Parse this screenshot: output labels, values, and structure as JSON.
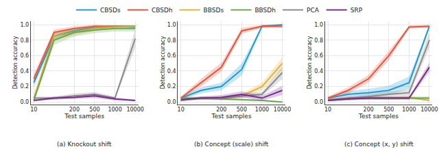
{
  "chart_data": [
    {
      "type": "line",
      "title": "(a) Knockout shift",
      "x_label": "Test samples",
      "y_label": "Detection accuracy",
      "categories": [
        "10",
        null,
        "200",
        "500",
        "1000",
        "10000"
      ],
      "ylim": [
        -0.03,
        1.05
      ],
      "yticks": [
        {
          "value": 0,
          "label": "0.0"
        },
        {
          "value": 0.2,
          "label": "0.2"
        },
        {
          "value": 0.4,
          "label": "0.4"
        },
        {
          "value": 0.6,
          "label": "0.6"
        },
        {
          "value": 0.8,
          "label": "0.8"
        },
        {
          "value": 1,
          "label": "1.0"
        }
      ],
      "grid": true,
      "legend": "top",
      "series": [
        {
          "name": "CBSDs",
          "color": "#1f9bd1",
          "values": [
            0.25,
            0.85,
            0.92,
            0.97,
            0.98,
            0.97
          ],
          "error": [
            0.06,
            0.04,
            0.03,
            0.02,
            0.01,
            0.02
          ]
        },
        {
          "name": "CBSDh",
          "color": "#e8533c",
          "values": [
            0.3,
            0.9,
            0.95,
            0.98,
            0.98,
            0.98
          ],
          "error": [
            0.06,
            0.04,
            0.03,
            0.02,
            0.01,
            0.01
          ]
        },
        {
          "name": "BBSDs",
          "color": "#e3b23c",
          "values": [
            0.05,
            0.85,
            0.9,
            0.95,
            0.97,
            0.98
          ],
          "error": [
            0.03,
            0.05,
            0.04,
            0.03,
            0.02,
            0.01
          ]
        },
        {
          "name": "BBSDh",
          "color": "#6aa84f",
          "values": [
            0.02,
            0.8,
            0.9,
            0.93,
            0.95,
            0.95
          ],
          "error": [
            0.02,
            0.06,
            0.05,
            0.04,
            0.04,
            0.04
          ]
        },
        {
          "name": "PCA",
          "color": "#8c8c8c",
          "values": [
            0.05,
            0.05,
            0.08,
            0.1,
            0.05,
            0.82
          ],
          "error": [
            0.02,
            0.02,
            0.03,
            0.03,
            0.02,
            0.12
          ]
        },
        {
          "name": "SRP",
          "color": "#7b2d8e",
          "values": [
            0.02,
            0.05,
            0.06,
            0.08,
            0.04,
            0.02
          ],
          "error": [
            0.01,
            0.02,
            0.02,
            0.03,
            0.02,
            0.01
          ]
        }
      ]
    },
    {
      "type": "line",
      "title": "(b) Concept (scale) shift",
      "x_label": "Test samples",
      "y_label": "Detection accuracy",
      "categories": [
        "10",
        null,
        "200",
        "500",
        "1000",
        "10000"
      ],
      "ylim": [
        -0.03,
        1.05
      ],
      "yticks": [
        {
          "value": 0,
          "label": "0.0"
        },
        {
          "value": 0.2,
          "label": "0.2"
        },
        {
          "value": 0.4,
          "label": "0.4"
        },
        {
          "value": 0.6,
          "label": "0.6"
        },
        {
          "value": 0.8,
          "label": "0.8"
        },
        {
          "value": 1,
          "label": "1.0"
        }
      ],
      "grid": true,
      "legend": "top",
      "series": [
        {
          "name": "CBSDs",
          "color": "#1f9bd1",
          "values": [
            0.05,
            0.15,
            0.2,
            0.42,
            0.98,
            1.0
          ],
          "error": [
            0.02,
            0.04,
            0.05,
            0.08,
            0.02,
            0.01
          ]
        },
        {
          "name": "CBSDh",
          "color": "#e8533c",
          "values": [
            0.05,
            0.25,
            0.45,
            0.92,
            0.98,
            0.98
          ],
          "error": [
            0.02,
            0.05,
            0.06,
            0.04,
            0.02,
            0.02
          ]
        },
        {
          "name": "BBSDs",
          "color": "#e3b23c",
          "values": [
            0.02,
            0.05,
            0.05,
            0.08,
            0.2,
            0.5
          ],
          "error": [
            0.01,
            0.02,
            0.02,
            0.03,
            0.05,
            0.08
          ]
        },
        {
          "name": "BBSDh",
          "color": "#6aa84f",
          "values": [
            0.05,
            0.05,
            0.04,
            0.03,
            0.02,
            0.0
          ],
          "error": [
            0.02,
            0.02,
            0.02,
            0.01,
            0.01,
            0.0
          ]
        },
        {
          "name": "PCA",
          "color": "#8c8c8c",
          "values": [
            0.02,
            0.05,
            0.05,
            0.08,
            0.1,
            0.38
          ],
          "error": [
            0.01,
            0.02,
            0.02,
            0.03,
            0.03,
            0.08
          ]
        },
        {
          "name": "SRP",
          "color": "#7b2d8e",
          "values": [
            0.03,
            0.05,
            0.06,
            0.1,
            0.05,
            0.15
          ],
          "error": [
            0.01,
            0.02,
            0.03,
            0.04,
            0.03,
            0.06
          ]
        }
      ]
    },
    {
      "type": "line",
      "title": "(c) Concept (x, y) shift",
      "x_label": "Test samples",
      "y_label": "Detection accuracy",
      "categories": [
        "10",
        null,
        "200",
        "500",
        "1000",
        "10000"
      ],
      "ylim": [
        -0.03,
        1.05
      ],
      "yticks": [
        {
          "value": 0,
          "label": "0.0"
        },
        {
          "value": 0.2,
          "label": "0.2"
        },
        {
          "value": 0.4,
          "label": "0.4"
        },
        {
          "value": 0.6,
          "label": "0.6"
        },
        {
          "value": 0.8,
          "label": "0.8"
        },
        {
          "value": 1,
          "label": "1.0"
        }
      ],
      "grid": true,
      "legend": "top",
      "series": [
        {
          "name": "CBSDs",
          "color": "#1f9bd1",
          "values": [
            0.05,
            0.1,
            0.12,
            0.15,
            0.25,
            0.98
          ],
          "error": [
            0.02,
            0.04,
            0.05,
            0.06,
            0.08,
            0.02
          ]
        },
        {
          "name": "CBSDh",
          "color": "#e8533c",
          "values": [
            0.05,
            0.15,
            0.3,
            0.6,
            0.97,
            0.98
          ],
          "error": [
            0.02,
            0.04,
            0.05,
            0.06,
            0.02,
            0.02
          ]
        },
        {
          "name": "BBSDs",
          "color": "#e3b23c",
          "values": [
            0.03,
            0.05,
            0.05,
            0.05,
            0.06,
            0.02
          ],
          "error": [
            0.01,
            0.02,
            0.02,
            0.02,
            0.02,
            0.01
          ]
        },
        {
          "name": "BBSDh",
          "color": "#6aa84f",
          "values": [
            0.02,
            0.04,
            0.05,
            0.05,
            0.05,
            0.05
          ],
          "error": [
            0.01,
            0.02,
            0.02,
            0.02,
            0.02,
            0.02
          ]
        },
        {
          "name": "PCA",
          "color": "#8c8c8c",
          "values": [
            0.03,
            0.05,
            0.07,
            0.1,
            0.12,
            0.8
          ],
          "error": [
            0.01,
            0.02,
            0.03,
            0.03,
            0.04,
            0.1
          ]
        },
        {
          "name": "SRP",
          "color": "#7b2d8e",
          "values": [
            0.02,
            0.04,
            0.05,
            0.05,
            0.05,
            0.45
          ],
          "error": [
            0.01,
            0.02,
            0.02,
            0.02,
            0.02,
            0.06
          ]
        }
      ]
    }
  ]
}
